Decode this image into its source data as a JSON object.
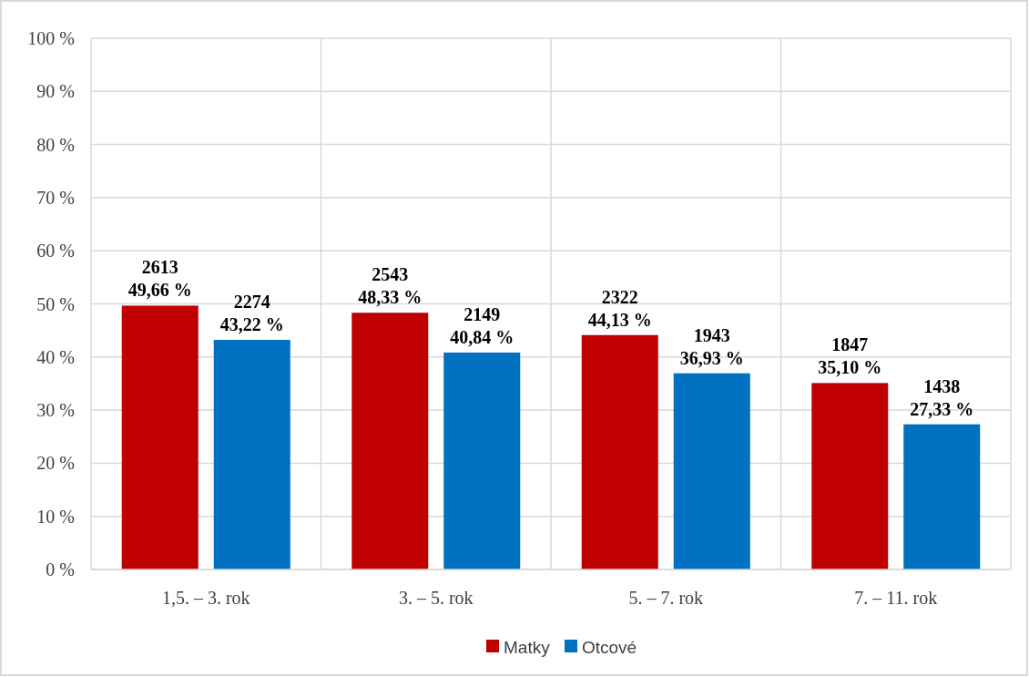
{
  "chart_data": {
    "type": "bar",
    "categories": [
      "1,5. – 3. rok",
      "3. – 5. rok",
      "5. – 7. rok",
      "7. – 11. rok"
    ],
    "series": [
      {
        "name": "Matky",
        "color": "#c00000",
        "values": [
          49.66,
          48.33,
          44.13,
          35.1
        ],
        "value_labels": [
          "2613\n49,66 %",
          "2543\n48,33 %",
          "2322\n44,13 %",
          "1847\n35,10 %"
        ]
      },
      {
        "name": "Otcové",
        "color": "#0070c0",
        "values": [
          43.22,
          40.84,
          36.93,
          27.33
        ],
        "value_labels": [
          "2274\n43,22 %",
          "2149\n40,84 %",
          "1943\n36,93 %",
          "1438\n27,33 %"
        ]
      }
    ],
    "ylim": [
      0,
      100
    ],
    "yticks": [
      {
        "value": 0,
        "label": "0 %"
      },
      {
        "value": 10,
        "label": "10 %"
      },
      {
        "value": 20,
        "label": "20 %"
      },
      {
        "value": 30,
        "label": "30 %"
      },
      {
        "value": 40,
        "label": "40 %"
      },
      {
        "value": 50,
        "label": "50 %"
      },
      {
        "value": 60,
        "label": "60 %"
      },
      {
        "value": 70,
        "label": "70 %"
      },
      {
        "value": 80,
        "label": "80 %"
      },
      {
        "value": 90,
        "label": "90 %"
      },
      {
        "value": 100,
        "label": "100 %"
      }
    ],
    "grid": true,
    "legend": "bottom"
  }
}
